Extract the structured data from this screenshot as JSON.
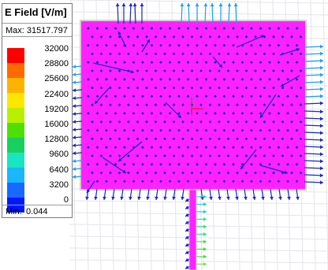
{
  "legend": {
    "title": "E Field [V/m]",
    "max_label": "Max: 31517.797",
    "min_label": "Min:",
    "min_value": "0.044",
    "ticks": [
      "32000",
      "28800",
      "25600",
      "22400",
      "19200",
      "16000",
      "12800",
      "9600",
      "6400",
      "3200",
      "0"
    ],
    "colors": [
      "#ff0000",
      "#ff6a00",
      "#ffb300",
      "#ffe600",
      "#b9f000",
      "#4fe000",
      "#17d060",
      "#19e6c0",
      "#1ab6ff",
      "#1869ff",
      "#0018ff"
    ]
  },
  "field": {
    "patch_color": "#ff22ff",
    "arrow_color": "#1428c8",
    "feed_arrow_colors": [
      "#20d0d0",
      "#30e080",
      "#40e040",
      "#80e040"
    ]
  }
}
